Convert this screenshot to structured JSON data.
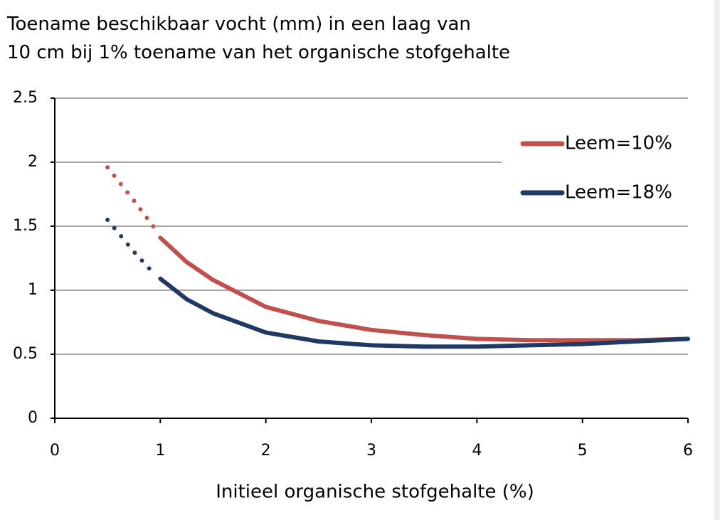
{
  "chart_data": {
    "type": "line",
    "title": [
      "Toename beschikbaar vocht (mm) in een laag van",
      "10 cm bij 1% toename van het organische stofgehalte"
    ],
    "x_label": "Initieel organische stofgehalte (%)",
    "xlim": [
      0,
      6
    ],
    "xticks": [
      0,
      1,
      2,
      3,
      4,
      5,
      6
    ],
    "ylim": [
      0,
      2.5
    ],
    "yticks": [
      0,
      0.5,
      1,
      1.5,
      2,
      2.5
    ],
    "grid": true,
    "legend": "upper right",
    "series": [
      {
        "name": "Leem=10%",
        "color": "#c0504d",
        "segments": [
          {
            "style": "dotted",
            "x": [
              0.5,
              0.75,
              0.95
            ],
            "values": [
              1.96,
              1.7,
              1.48
            ]
          },
          {
            "style": "solid",
            "x": [
              1,
              1.25,
              1.5,
              2,
              2.5,
              3,
              3.5,
              4,
              4.5,
              5,
              5.5,
              6
            ],
            "values": [
              1.41,
              1.22,
              1.08,
              0.87,
              0.76,
              0.69,
              0.65,
              0.62,
              0.61,
              0.61,
              0.61,
              0.62
            ]
          }
        ]
      },
      {
        "name": "Leem=18%",
        "color": "#1f3864",
        "segments": [
          {
            "style": "dotted",
            "x": [
              0.5,
              0.75,
              0.95
            ],
            "values": [
              1.55,
              1.3,
              1.12
            ]
          },
          {
            "style": "solid",
            "x": [
              1,
              1.25,
              1.5,
              2,
              2.5,
              3,
              3.5,
              4,
              4.5,
              5,
              5.5,
              6
            ],
            "values": [
              1.09,
              0.93,
              0.82,
              0.67,
              0.6,
              0.57,
              0.56,
              0.56,
              0.57,
              0.58,
              0.6,
              0.62
            ]
          }
        ]
      }
    ]
  }
}
